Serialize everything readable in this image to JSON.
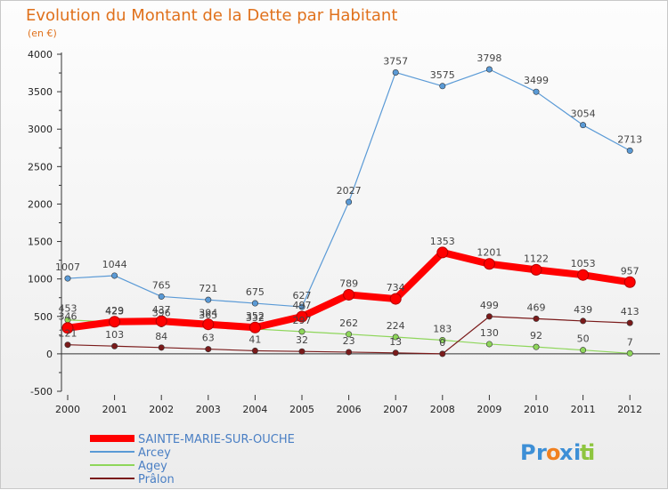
{
  "chart_data": {
    "type": "line",
    "title": "Evolution du Montant de la Dette par Habitant",
    "subtitle": "(en €)",
    "x": [
      "2000",
      "2001",
      "2002",
      "2003",
      "2004",
      "2005",
      "2006",
      "2007",
      "2008",
      "2009",
      "2010",
      "2011",
      "2012"
    ],
    "ylim": [
      -500,
      4000
    ],
    "yticks": [
      -500,
      0,
      500,
      1000,
      1500,
      2000,
      2500,
      3000,
      3500,
      4000
    ],
    "grid": false,
    "legend_position": "bottom-left",
    "series": [
      {
        "name": "SAINTE-MARIE-SUR-OUCHE",
        "color": "#ff0000",
        "values": [
          346,
          429,
          437,
          394,
          352,
          497,
          789,
          734,
          1353,
          1201,
          1122,
          1053,
          957
        ]
      },
      {
        "name": "Arcey",
        "color": "#5a9ad6",
        "values": [
          1007,
          1044,
          765,
          721,
          675,
          627,
          2027,
          3757,
          3575,
          3798,
          3499,
          3054,
          2713
        ]
      },
      {
        "name": "Agey",
        "color": "#8ed65a",
        "values": [
          453,
          423,
          396,
          365,
          332,
          297,
          262,
          224,
          183,
          130,
          92,
          50,
          7
        ]
      },
      {
        "name": "Prâlon",
        "color": "#7a1a1a",
        "values": [
          121,
          103,
          84,
          63,
          41,
          32,
          23,
          13,
          0,
          499,
          469,
          439,
          413
        ]
      }
    ]
  },
  "logo": {
    "text": "Proxiti",
    "letters": [
      "P",
      "r",
      "o",
      "x",
      "i",
      "t",
      "i"
    ],
    "colors": [
      "#3d8fd6",
      "#3d8fd6",
      "#f08020",
      "#3d8fd6",
      "#3d8fd6",
      "#8ec53f",
      "#8ec53f"
    ]
  }
}
